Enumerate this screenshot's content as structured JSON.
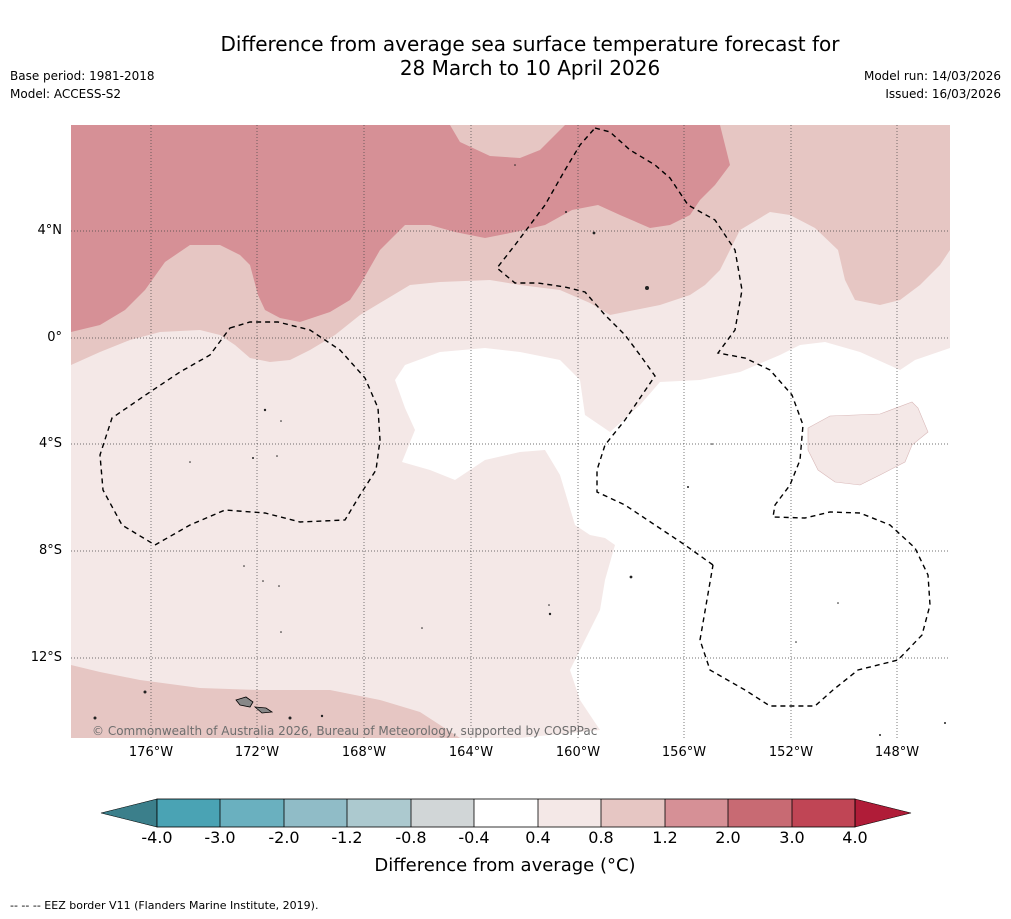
{
  "title": {
    "line1": "Difference from average sea surface temperature forecast for",
    "line2": "28 March to 10 April 2026"
  },
  "meta": {
    "base_period": "Base period: 1981-2018",
    "model": "Model: ACCESS-S2",
    "model_run": "Model run: 14/03/2026",
    "issued": "Issued: 16/03/2026"
  },
  "map": {
    "lat_labels": [
      "4°N",
      "0°",
      "4°S",
      "8°S",
      "12°S"
    ],
    "lon_labels": [
      "176°W",
      "172°W",
      "168°W",
      "164°W",
      "160°W",
      "156°W",
      "152°W",
      "148°W"
    ],
    "copyright": "© Commonwealth of Australia 2026, Bureau of Meteorology, supported by COSPPac",
    "colors": {
      "band_2_3": "#d69096",
      "band_1_2": "#e6c6c3",
      "band_04_08": "#f4e8e7",
      "band_neutral": "#ffffff"
    }
  },
  "colorbar": {
    "labels": [
      "-4.0",
      "-3.0",
      "-2.0",
      "-1.2",
      "-0.8",
      "-0.4",
      "0.4",
      "0.8",
      "1.2",
      "2.0",
      "3.0",
      "4.0"
    ],
    "colors": [
      "#3b7f8b",
      "#4aa3b4",
      "#6ab0bf",
      "#90bcc7",
      "#acc9cf",
      "#d1d6d7",
      "#ffffff",
      "#f4e8e7",
      "#e6c6c3",
      "#d69096",
      "#c86a73",
      "#c04555",
      "#b01c38"
    ],
    "title": "Difference from average (°C)"
  },
  "footer": "--  --  -- EEZ border V11 (Flanders Marine Institute, 2019)."
}
